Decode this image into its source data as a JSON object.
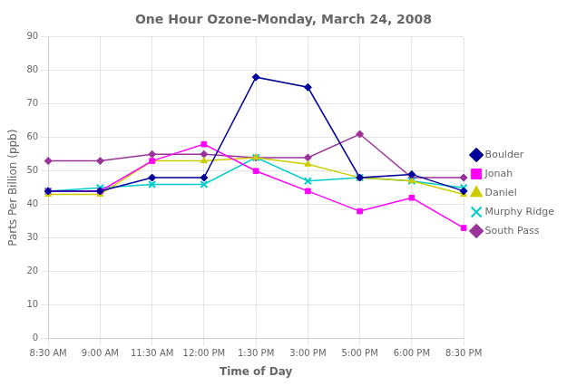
{
  "chart_data": {
    "type": "line",
    "title": "One Hour Ozone-Monday, March 24, 2008",
    "xlabel": "Time of Day",
    "ylabel": "Parts Per Billion (ppb)",
    "categories": [
      "8:30 AM",
      "9:00 AM",
      "11:30 AM",
      "12:00 PM",
      "1:30 PM",
      "3:00 PM",
      "5:00 PM",
      "6:00 PM",
      "8:30 PM"
    ],
    "series": [
      {
        "name": "Boulder",
        "color": "#000099",
        "marker": "diamond",
        "values": [
          44,
          44,
          48,
          48,
          78,
          75,
          48,
          49,
          44
        ]
      },
      {
        "name": "Jonah",
        "color": "#ff00ff",
        "marker": "square",
        "values": [
          44,
          44,
          53,
          58,
          50,
          44,
          38,
          42,
          33
        ]
      },
      {
        "name": "Daniel",
        "color": "#cccc00",
        "marker": "triangle",
        "values": [
          43,
          43,
          53,
          53,
          54,
          52,
          48,
          47,
          43
        ]
      },
      {
        "name": "Murphy Ridge",
        "color": "#00cccc",
        "marker": "x",
        "values": [
          44,
          45,
          46,
          46,
          54,
          47,
          48,
          47,
          45
        ]
      },
      {
        "name": "South Pass",
        "color": "#993399",
        "marker": "diamond",
        "values": [
          53,
          53,
          55,
          55,
          54,
          54,
          61,
          48,
          48
        ]
      }
    ],
    "ylim": [
      0,
      90
    ],
    "yticks": [
      0,
      10,
      20,
      30,
      40,
      50,
      60,
      70,
      80,
      90
    ],
    "grid": true,
    "legend": "right"
  }
}
